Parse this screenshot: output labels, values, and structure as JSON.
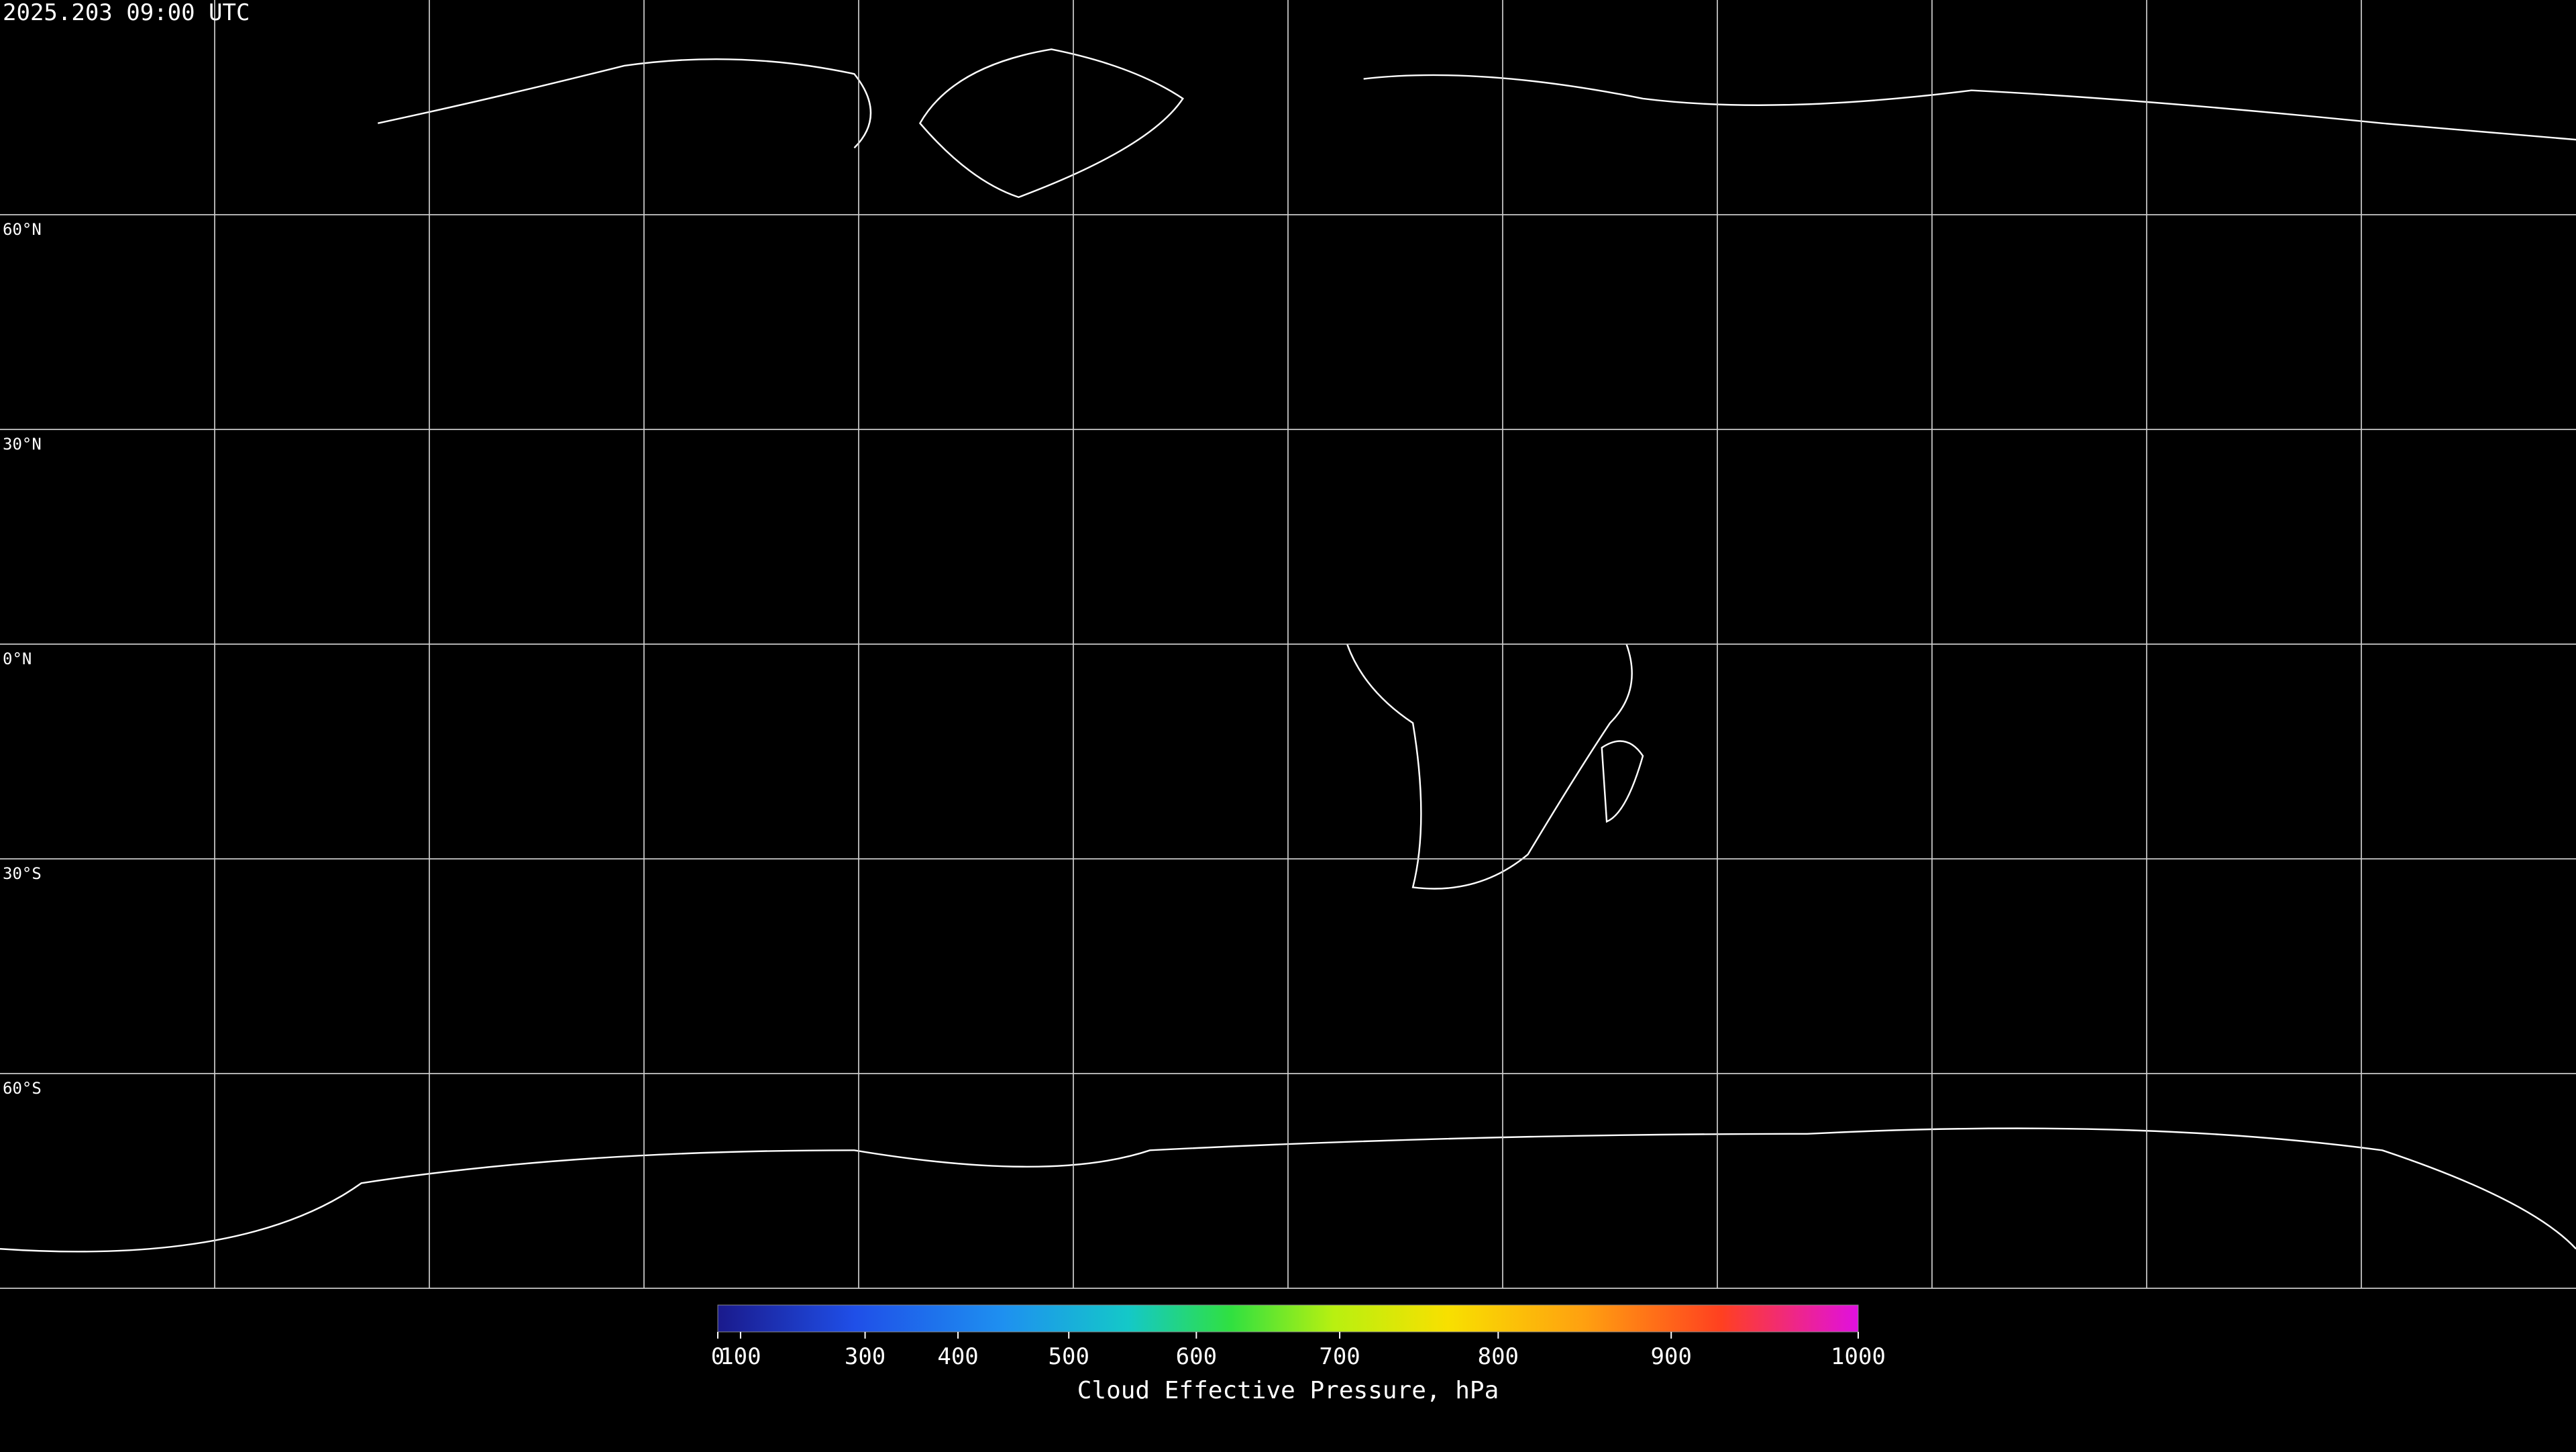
{
  "title": "2025.203 09:00 UTC",
  "map": {
    "lat_labels": [
      "60°N",
      "30°N",
      "0°N",
      "30°S",
      "60°S"
    ]
  },
  "colorbar": {
    "label": "Cloud Effective Pressure, hPa",
    "range": [
      0,
      1000
    ],
    "scale": "power",
    "exponent": 1.7,
    "ticks": [
      0,
      100,
      300,
      400,
      500,
      600,
      700,
      800,
      900,
      1000
    ]
  }
}
